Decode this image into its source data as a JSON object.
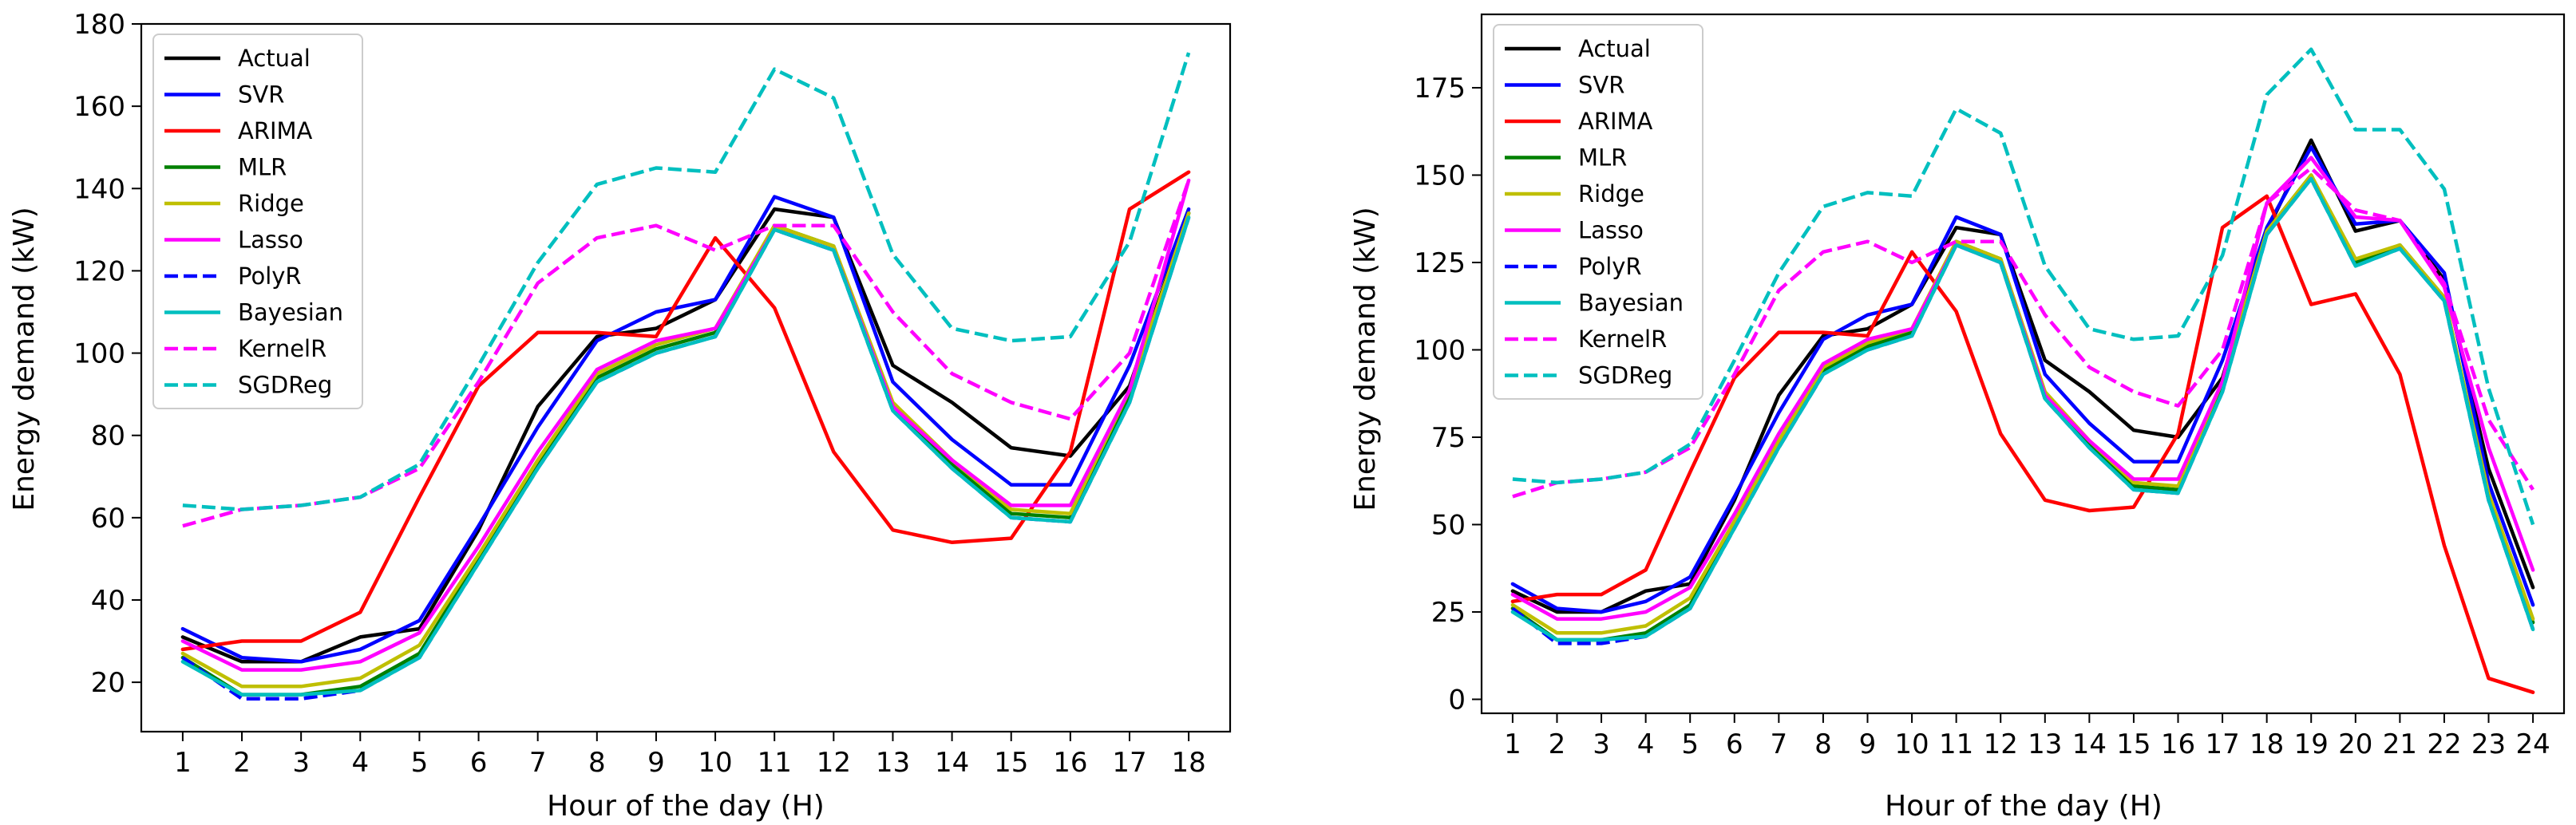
{
  "series_styles": [
    {
      "name": "Actual",
      "color": "#000000",
      "dash": "solid"
    },
    {
      "name": "SVR",
      "color": "#0000ff",
      "dash": "solid"
    },
    {
      "name": "ARIMA",
      "color": "#ff0000",
      "dash": "solid"
    },
    {
      "name": "MLR",
      "color": "#008000",
      "dash": "solid"
    },
    {
      "name": "Ridge",
      "color": "#bfbf00",
      "dash": "solid"
    },
    {
      "name": "Lasso",
      "color": "#ff00ff",
      "dash": "solid"
    },
    {
      "name": "PolyR",
      "color": "#0000ff",
      "dash": "dashed"
    },
    {
      "name": "Bayesian",
      "color": "#00bfbf",
      "dash": "solid"
    },
    {
      "name": "KernelR",
      "color": "#ff00ff",
      "dash": "dashed"
    },
    {
      "name": "SGDReg",
      "color": "#00bfbf",
      "dash": "dashed"
    }
  ],
  "chart_data": [
    {
      "type": "line",
      "xlabel": "Hour of the day (H)",
      "ylabel": "Energy demand (kW)",
      "xlim": [
        0.3,
        18.7
      ],
      "ylim": [
        8,
        180
      ],
      "yticks": [
        20,
        40,
        60,
        80,
        100,
        120,
        140,
        160,
        180
      ],
      "legend_position": "upper-left",
      "x": [
        1,
        2,
        3,
        4,
        5,
        6,
        7,
        8,
        9,
        10,
        11,
        12,
        13,
        14,
        15,
        16,
        17,
        18
      ],
      "series": [
        {
          "name": "Actual",
          "values": [
            31,
            25,
            25,
            31,
            33,
            57,
            87,
            104,
            106,
            113,
            135,
            133,
            97,
            88,
            77,
            75,
            92,
            134
          ]
        },
        {
          "name": "SVR",
          "values": [
            33,
            26,
            25,
            28,
            35,
            58,
            82,
            103,
            110,
            113,
            138,
            133,
            93,
            79,
            68,
            68,
            97,
            135
          ]
        },
        {
          "name": "ARIMA",
          "values": [
            28,
            30,
            30,
            37,
            65,
            92,
            105,
            105,
            104,
            128,
            111,
            76,
            57,
            54,
            55,
            76,
            135,
            144
          ]
        },
        {
          "name": "MLR",
          "values": [
            26,
            17,
            17,
            19,
            27,
            50,
            73,
            94,
            101,
            105,
            131,
            126,
            87,
            73,
            61,
            60,
            90,
            134
          ]
        },
        {
          "name": "Ridge",
          "values": [
            27,
            19,
            19,
            21,
            29,
            51,
            74,
            95,
            102,
            106,
            131,
            126,
            88,
            74,
            62,
            61,
            91,
            134
          ]
        },
        {
          "name": "Lasso",
          "values": [
            30,
            23,
            23,
            25,
            32,
            53,
            76,
            96,
            103,
            106,
            130,
            125,
            87,
            74,
            63,
            63,
            91,
            142
          ]
        },
        {
          "name": "PolyR",
          "values": [
            26,
            16,
            16,
            18,
            26,
            49,
            72,
            93,
            100,
            104,
            130,
            125,
            86,
            72,
            60,
            59,
            88,
            133
          ]
        },
        {
          "name": "Bayesian",
          "values": [
            25,
            17,
            17,
            18,
            26,
            49,
            72,
            93,
            100,
            104,
            130,
            125,
            86,
            72,
            60,
            59,
            88,
            133
          ]
        },
        {
          "name": "KernelR",
          "values": [
            58,
            62,
            63,
            65,
            72,
            93,
            117,
            128,
            131,
            125,
            131,
            131,
            110,
            95,
            88,
            84,
            100,
            142
          ]
        },
        {
          "name": "SGDReg",
          "values": [
            63,
            62,
            63,
            65,
            73,
            97,
            122,
            141,
            145,
            144,
            169,
            162,
            124,
            106,
            103,
            104,
            127,
            173
          ]
        }
      ]
    },
    {
      "type": "line",
      "xlabel": "Hour of the day (H)",
      "ylabel": "Energy demand (kW)",
      "xlim": [
        0.3,
        24.7
      ],
      "ylim": [
        -4,
        196
      ],
      "yticks": [
        0,
        25,
        50,
        75,
        100,
        125,
        150,
        175
      ],
      "legend_position": "upper-left",
      "x": [
        1,
        2,
        3,
        4,
        5,
        6,
        7,
        8,
        9,
        10,
        11,
        12,
        13,
        14,
        15,
        16,
        17,
        18,
        19,
        20,
        21,
        22,
        23,
        24
      ],
      "series": [
        {
          "name": "Actual",
          "values": [
            31,
            25,
            25,
            31,
            33,
            57,
            87,
            104,
            106,
            113,
            135,
            133,
            97,
            88,
            77,
            75,
            92,
            134,
            160,
            134,
            137,
            120,
            66,
            32
          ]
        },
        {
          "name": "SVR",
          "values": [
            33,
            26,
            25,
            28,
            35,
            58,
            82,
            103,
            110,
            113,
            138,
            133,
            93,
            79,
            68,
            68,
            97,
            135,
            158,
            136,
            137,
            122,
            62,
            27
          ]
        },
        {
          "name": "ARIMA",
          "values": [
            28,
            30,
            30,
            37,
            65,
            92,
            105,
            105,
            104,
            128,
            111,
            76,
            57,
            54,
            55,
            76,
            135,
            144,
            113,
            116,
            93,
            44,
            6,
            2
          ]
        },
        {
          "name": "MLR",
          "values": [
            26,
            17,
            17,
            19,
            27,
            50,
            73,
            94,
            101,
            105,
            131,
            126,
            87,
            73,
            61,
            60,
            90,
            134,
            150,
            125,
            130,
            115,
            58,
            22
          ]
        },
        {
          "name": "Ridge",
          "values": [
            27,
            19,
            19,
            21,
            29,
            51,
            74,
            95,
            102,
            106,
            131,
            126,
            88,
            74,
            62,
            61,
            91,
            134,
            150,
            126,
            130,
            115,
            59,
            23
          ]
        },
        {
          "name": "Lasso",
          "values": [
            30,
            23,
            23,
            25,
            32,
            53,
            76,
            96,
            103,
            106,
            130,
            125,
            87,
            74,
            63,
            63,
            91,
            142,
            155,
            138,
            137,
            118,
            72,
            37
          ]
        },
        {
          "name": "PolyR",
          "values": [
            26,
            16,
            16,
            18,
            26,
            49,
            72,
            93,
            100,
            104,
            130,
            125,
            86,
            72,
            60,
            59,
            88,
            133,
            149,
            124,
            129,
            114,
            57,
            20
          ]
        },
        {
          "name": "Bayesian",
          "values": [
            25,
            17,
            17,
            18,
            26,
            49,
            72,
            93,
            100,
            104,
            130,
            125,
            86,
            72,
            60,
            59,
            88,
            133,
            149,
            124,
            129,
            114,
            57,
            20
          ]
        },
        {
          "name": "KernelR",
          "values": [
            58,
            62,
            63,
            65,
            72,
            93,
            117,
            128,
            131,
            125,
            131,
            131,
            110,
            95,
            88,
            84,
            100,
            142,
            152,
            140,
            137,
            119,
            80,
            60
          ]
        },
        {
          "name": "SGDReg",
          "values": [
            63,
            62,
            63,
            65,
            73,
            97,
            122,
            141,
            145,
            144,
            169,
            162,
            124,
            106,
            103,
            104,
            127,
            173,
            186,
            163,
            163,
            146,
            89,
            50
          ]
        }
      ]
    }
  ]
}
